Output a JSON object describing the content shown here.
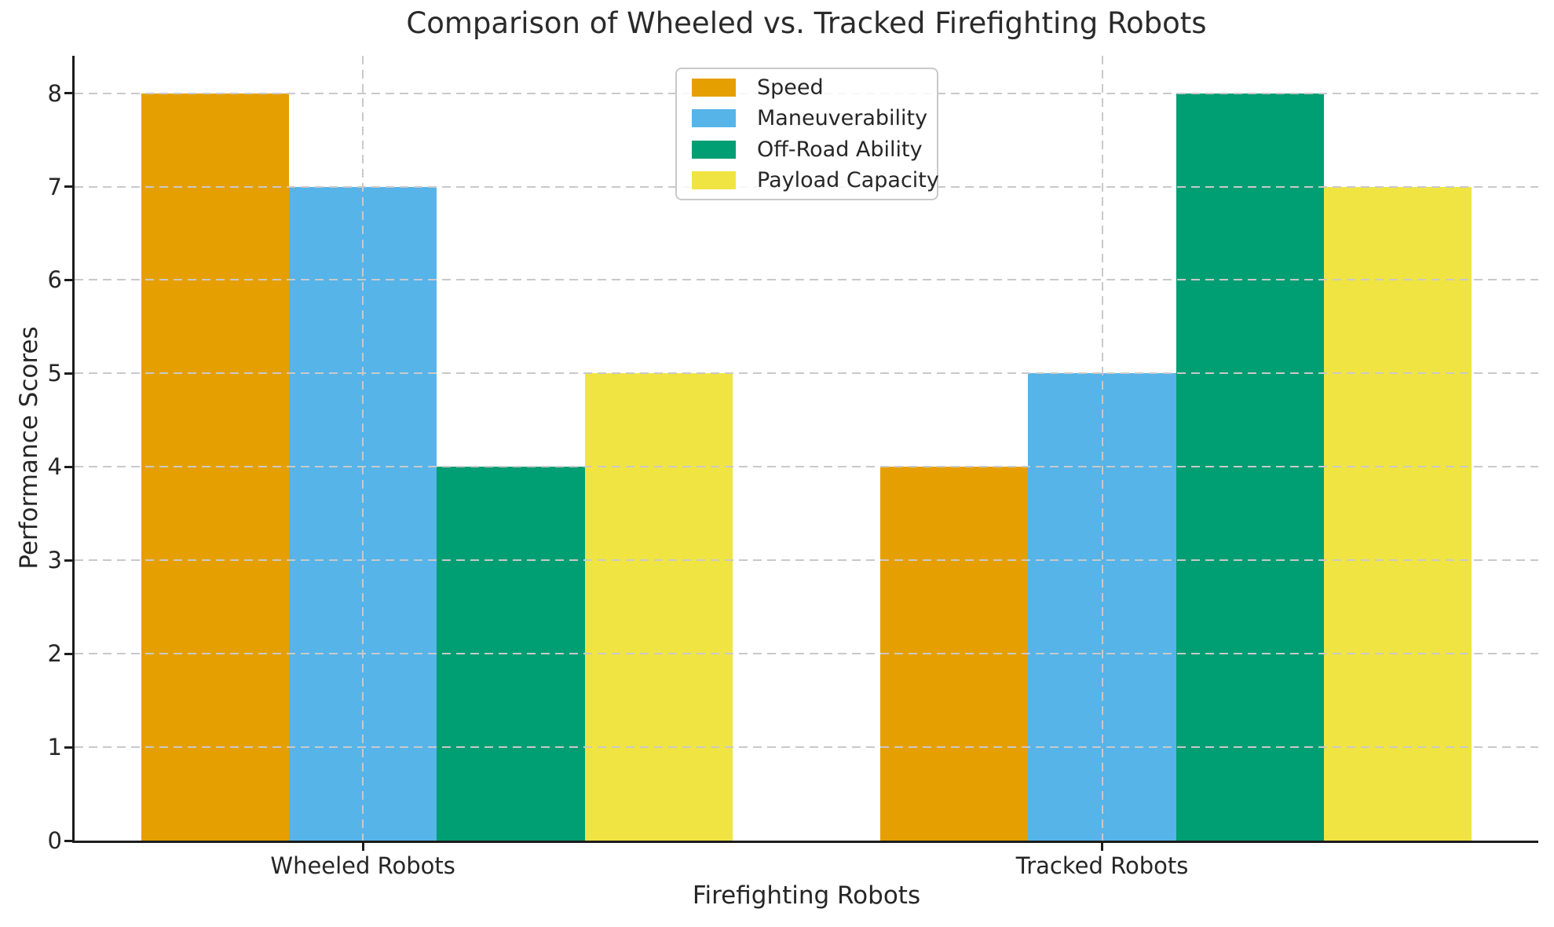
{
  "title": "Comparison of Wheeled vs. Tracked Firefighting Robots",
  "chart_data": {
    "type": "bar",
    "title": "Comparison of Wheeled vs. Tracked Firefighting Robots",
    "xlabel": "Firefighting Robots",
    "ylabel": "Performance Scores",
    "categories": [
      "Wheeled Robots",
      "Tracked Robots"
    ],
    "series": [
      {
        "name": "Speed",
        "color": "#E69F00",
        "values": [
          8,
          4
        ]
      },
      {
        "name": "Maneuverability",
        "color": "#56B4E9",
        "values": [
          7,
          5
        ]
      },
      {
        "name": "Off-Road Ability",
        "color": "#009E73",
        "values": [
          4,
          8
        ]
      },
      {
        "name": "Payload Capacity",
        "color": "#F0E442",
        "values": [
          5,
          7
        ]
      }
    ],
    "yticks": [
      0,
      1,
      2,
      3,
      4,
      5,
      6,
      7,
      8
    ],
    "ylim": [
      0,
      8.4
    ],
    "xlim": [
      -0.39,
      1.59
    ],
    "bar_width_data_units": 0.2,
    "grid": true,
    "grid_style": "dashed",
    "legend_position": "upper center"
  },
  "colors": {
    "grid": "#c9c9c9",
    "spine": "#1c1c1c",
    "text": "#262626",
    "legend_border": "#c9c9c9",
    "background": "#ffffff"
  }
}
